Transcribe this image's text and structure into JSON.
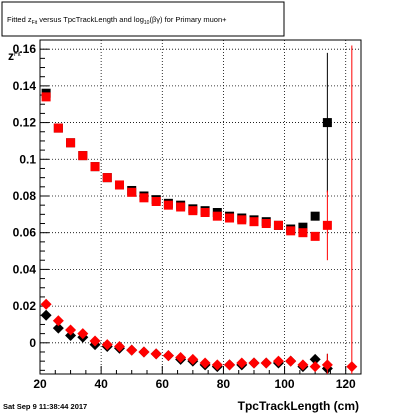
{
  "chart_data": {
    "type": "scatter",
    "title": {
      "prefix": "Fitted  z",
      "sub1": "Fit",
      "mid": "  versus TpcTrackLength and log",
      "sub2": "10",
      "suffix": "(βγ) for Primary muon+"
    },
    "xlabel": "TpcTrackLength (cm)",
    "ylabel": "z",
    "ylabel_sub": "Fit",
    "xlim": [
      20,
      125
    ],
    "ylim": [
      -0.017,
      0.165
    ],
    "grid": true,
    "xticks": [
      {
        "v": 20,
        "label": "20"
      },
      {
        "v": 40,
        "label": "40"
      },
      {
        "v": 60,
        "label": "60"
      },
      {
        "v": 80,
        "label": "80"
      },
      {
        "v": 100,
        "label": "100"
      },
      {
        "v": 120,
        "label": "120"
      }
    ],
    "yticks": [
      {
        "v": 0,
        "label": "0"
      },
      {
        "v": 0.02,
        "label": "0.02"
      },
      {
        "v": 0.04,
        "label": "0.04"
      },
      {
        "v": 0.06,
        "label": "0.06"
      },
      {
        "v": 0.08,
        "label": "0.08"
      },
      {
        "v": 0.1,
        "label": "0.1"
      },
      {
        "v": 0.12,
        "label": "0.12"
      },
      {
        "v": 0.14,
        "label": "0.14"
      },
      {
        "v": 0.16,
        "label": "0.16"
      }
    ],
    "series": [
      {
        "marker": "square",
        "color": "#000000",
        "points": [
          {
            "x": 22,
            "y": 0.136
          },
          {
            "x": 26,
            "y": 0.117
          },
          {
            "x": 30,
            "y": 0.109
          },
          {
            "x": 34,
            "y": 0.102
          },
          {
            "x": 38,
            "y": 0.096
          },
          {
            "x": 42,
            "y": 0.09
          },
          {
            "x": 46,
            "y": 0.086
          },
          {
            "x": 50,
            "y": 0.083
          },
          {
            "x": 54,
            "y": 0.08
          },
          {
            "x": 58,
            "y": 0.078
          },
          {
            "x": 62,
            "y": 0.076
          },
          {
            "x": 66,
            "y": 0.075
          },
          {
            "x": 70,
            "y": 0.073
          },
          {
            "x": 74,
            "y": 0.072
          },
          {
            "x": 78,
            "y": 0.071
          },
          {
            "x": 82,
            "y": 0.069
          },
          {
            "x": 86,
            "y": 0.068
          },
          {
            "x": 90,
            "y": 0.067
          },
          {
            "x": 94,
            "y": 0.066
          },
          {
            "x": 98,
            "y": 0.064
          },
          {
            "x": 102,
            "y": 0.062
          },
          {
            "x": 106,
            "y": 0.063
          },
          {
            "x": 110,
            "y": 0.069
          },
          {
            "x": 114,
            "y": 0.12,
            "err": 0.038
          }
        ]
      },
      {
        "marker": "square",
        "color": "#ff0000",
        "points": [
          {
            "x": 22,
            "y": 0.134
          },
          {
            "x": 26,
            "y": 0.117
          },
          {
            "x": 30,
            "y": 0.109
          },
          {
            "x": 34,
            "y": 0.102
          },
          {
            "x": 38,
            "y": 0.096
          },
          {
            "x": 42,
            "y": 0.09
          },
          {
            "x": 46,
            "y": 0.086
          },
          {
            "x": 50,
            "y": 0.082
          },
          {
            "x": 54,
            "y": 0.079
          },
          {
            "x": 58,
            "y": 0.077
          },
          {
            "x": 62,
            "y": 0.075
          },
          {
            "x": 66,
            "y": 0.074
          },
          {
            "x": 70,
            "y": 0.072
          },
          {
            "x": 74,
            "y": 0.071
          },
          {
            "x": 78,
            "y": 0.069
          },
          {
            "x": 82,
            "y": 0.068
          },
          {
            "x": 86,
            "y": 0.067
          },
          {
            "x": 90,
            "y": 0.066
          },
          {
            "x": 94,
            "y": 0.065
          },
          {
            "x": 98,
            "y": 0.064
          },
          {
            "x": 102,
            "y": 0.061
          },
          {
            "x": 106,
            "y": 0.06
          },
          {
            "x": 110,
            "y": 0.058
          },
          {
            "x": 114,
            "y": 0.064,
            "err": 0.019
          }
        ]
      },
      {
        "marker": "diamond",
        "color": "#000000",
        "points": [
          {
            "x": 22,
            "y": 0.015
          },
          {
            "x": 26,
            "y": 0.008
          },
          {
            "x": 30,
            "y": 0.004
          },
          {
            "x": 34,
            "y": 0.003
          },
          {
            "x": 38,
            "y": -0.001
          },
          {
            "x": 42,
            "y": -0.002
          },
          {
            "x": 46,
            "y": -0.003
          },
          {
            "x": 50,
            "y": -0.004
          },
          {
            "x": 54,
            "y": -0.005
          },
          {
            "x": 58,
            "y": -0.006
          },
          {
            "x": 62,
            "y": -0.007
          },
          {
            "x": 66,
            "y": -0.009
          },
          {
            "x": 70,
            "y": -0.01
          },
          {
            "x": 74,
            "y": -0.012
          },
          {
            "x": 78,
            "y": -0.013
          },
          {
            "x": 82,
            "y": -0.012
          },
          {
            "x": 86,
            "y": -0.012
          },
          {
            "x": 90,
            "y": -0.011
          },
          {
            "x": 94,
            "y": -0.011
          },
          {
            "x": 98,
            "y": -0.011
          },
          {
            "x": 102,
            "y": -0.01
          },
          {
            "x": 106,
            "y": -0.013
          },
          {
            "x": 110,
            "y": -0.009
          },
          {
            "x": 114,
            "y": -0.014,
            "err": 0.008
          }
        ]
      },
      {
        "marker": "diamond",
        "color": "#ff0000",
        "points": [
          {
            "x": 22,
            "y": 0.021
          },
          {
            "x": 26,
            "y": 0.012
          },
          {
            "x": 30,
            "y": 0.007
          },
          {
            "x": 34,
            "y": 0.005
          },
          {
            "x": 38,
            "y": 0.001
          },
          {
            "x": 42,
            "y": -0.001
          },
          {
            "x": 46,
            "y": -0.002
          },
          {
            "x": 50,
            "y": -0.004
          },
          {
            "x": 54,
            "y": -0.005
          },
          {
            "x": 58,
            "y": -0.006
          },
          {
            "x": 62,
            "y": -0.007
          },
          {
            "x": 66,
            "y": -0.008
          },
          {
            "x": 70,
            "y": -0.009
          },
          {
            "x": 74,
            "y": -0.011
          },
          {
            "x": 78,
            "y": -0.012
          },
          {
            "x": 82,
            "y": -0.012
          },
          {
            "x": 86,
            "y": -0.011
          },
          {
            "x": 90,
            "y": -0.011
          },
          {
            "x": 94,
            "y": -0.011
          },
          {
            "x": 98,
            "y": -0.01
          },
          {
            "x": 102,
            "y": -0.01
          },
          {
            "x": 106,
            "y": -0.012
          },
          {
            "x": 110,
            "y": -0.013
          },
          {
            "x": 114,
            "y": -0.012,
            "err": 0.006
          },
          {
            "x": 122,
            "y": -0.013,
            "err": 0.175
          }
        ]
      }
    ]
  },
  "footer": {
    "timestamp": "Sat Sep  9 11:38:44 2017"
  }
}
